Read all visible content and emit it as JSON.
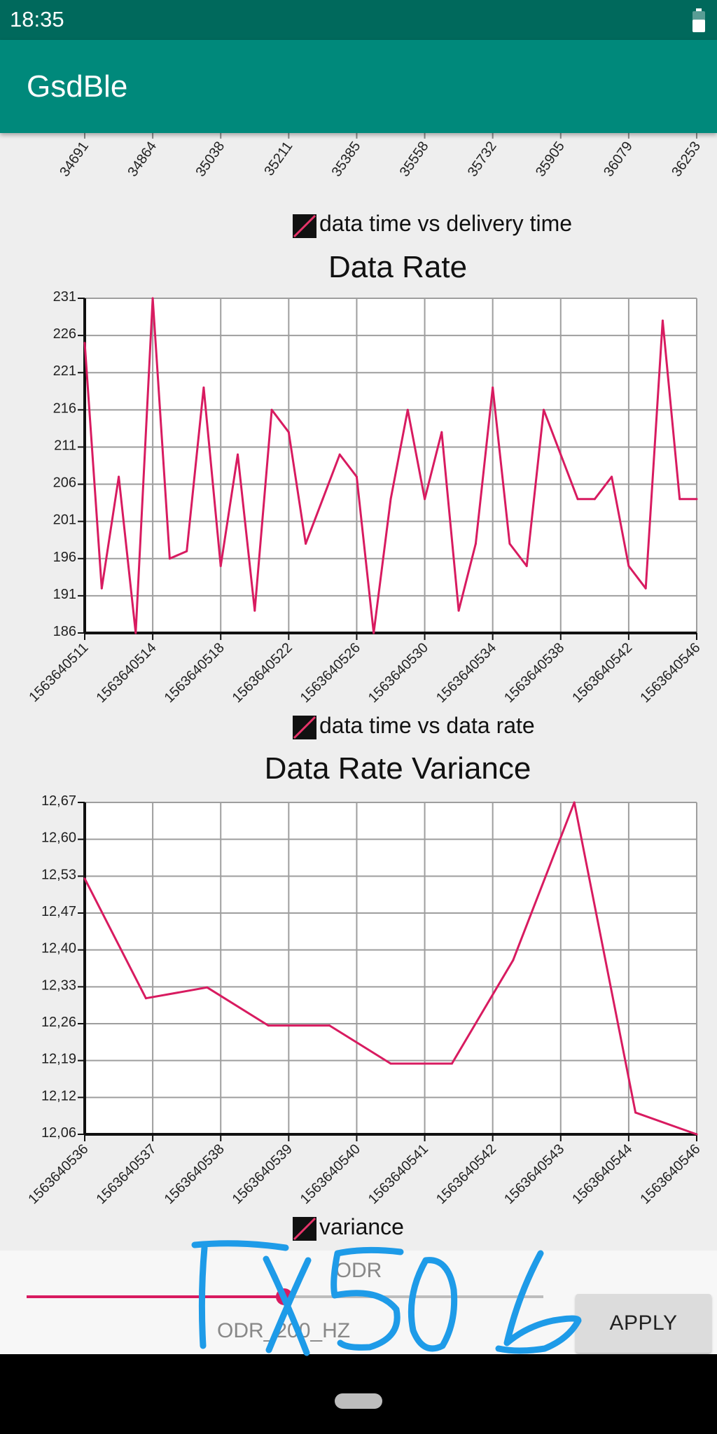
{
  "status_bar": {
    "time": "18:35",
    "battery_icon": "battery-icon"
  },
  "app_bar": {
    "title": "GsdBle"
  },
  "charts": [
    {
      "chart_data": {
        "type": "line",
        "title": "",
        "x_tick_labels": [
          "34691",
          "34864",
          "35038",
          "35211",
          "35385",
          "35558",
          "35732",
          "35905",
          "36079",
          "36253"
        ],
        "legend": "data time vs delivery time",
        "color": "#d81b60"
      }
    },
    {
      "chart_data": {
        "type": "line",
        "title": "Data Rate",
        "x_tick_labels": [
          "1563640511",
          "1563640514",
          "1563640518",
          "1563640522",
          "1563640526",
          "1563640530",
          "1563640534",
          "1563640538",
          "1563640542",
          "1563640546"
        ],
        "y_tick_labels": [
          "231",
          "226",
          "221",
          "216",
          "211",
          "206",
          "201",
          "196",
          "191",
          "186"
        ],
        "ylim": [
          186,
          231
        ],
        "x_range": [
          0,
          36
        ],
        "series": [
          {
            "name": "data time vs data rate",
            "color": "#d81b60",
            "x": [
              0,
              1,
              2,
              3,
              4,
              5,
              6,
              7,
              8,
              9,
              10,
              11,
              12,
              13,
              14,
              15,
              16,
              17,
              18,
              19,
              20,
              21,
              22,
              23,
              24,
              25,
              26,
              27,
              28,
              29,
              30,
              31,
              32,
              33,
              34,
              35,
              36
            ],
            "y": [
              225,
              192,
              207,
              186,
              231,
              196,
              197,
              219,
              195,
              210,
              189,
              216,
              213,
              198,
              204,
              210,
              207,
              186,
              204,
              216,
              204,
              213,
              189,
              198,
              219,
              198,
              195,
              216,
              210,
              204,
              204,
              207,
              195,
              192,
              228,
              204,
              204
            ]
          }
        ],
        "legend": "data time vs data rate"
      }
    },
    {
      "chart_data": {
        "type": "line",
        "title": "Data Rate Variance",
        "x_tick_labels": [
          "1563640536",
          "1563640537",
          "1563640538",
          "1563640539",
          "1563640540",
          "1563640541",
          "1563640542",
          "1563640543",
          "1563640544",
          "1563640546"
        ],
        "y_tick_labels": [
          "12,67",
          "12,60",
          "12,53",
          "12,47",
          "12,40",
          "12,33",
          "12,26",
          "12,19",
          "12,12",
          "12,06"
        ],
        "ylim": [
          12.06,
          12.67
        ],
        "x_range": [
          0,
          9
        ],
        "series": [
          {
            "name": "variance",
            "color": "#d81b60",
            "x": [
              0,
              0.9,
              1.8,
              2.7,
              3.6,
              4.5,
              5.4,
              6.3,
              7.2,
              8.1,
              9.0
            ],
            "y": [
              12.53,
              12.31,
              12.33,
              12.26,
              12.26,
              12.19,
              12.19,
              12.38,
              12.67,
              12.1,
              12.06
            ]
          }
        ],
        "legend": "variance"
      }
    }
  ],
  "controls": {
    "odr_label": "ODR",
    "odr_value": "ODR_200_HZ",
    "slider_level_fraction": 0.49,
    "apply_label": "APPLY"
  },
  "annotation": {
    "handwritten_text": "TX50 b",
    "color": "#1e9be8"
  }
}
